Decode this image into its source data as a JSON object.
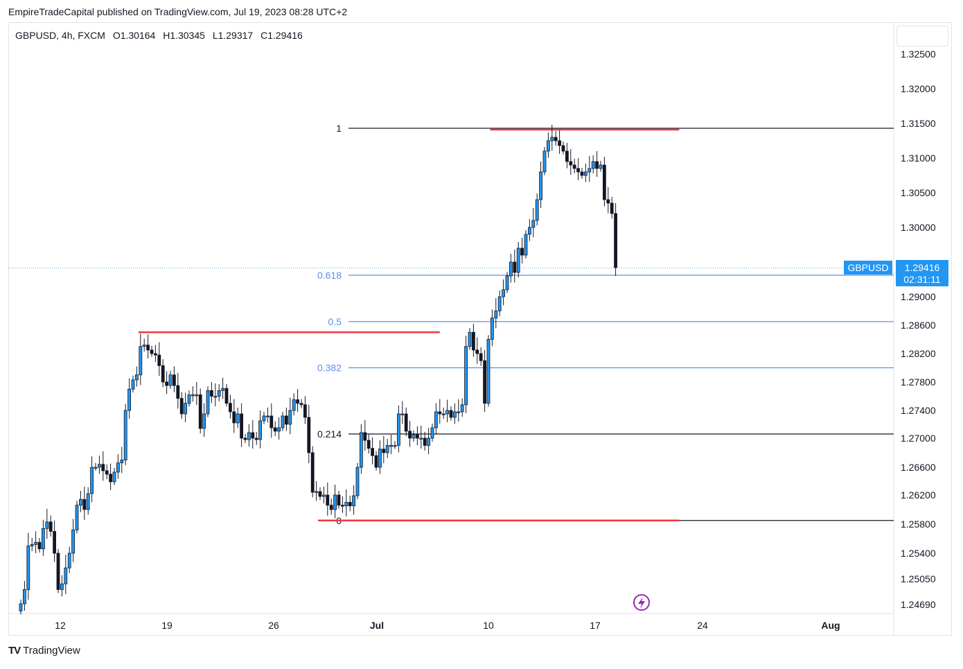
{
  "header": {
    "published_by": "EmpireTradeCapital published on TradingView.com, Jul 19, 2023 08:28 UTC+2"
  },
  "legend": {
    "symbol": "GBPUSD, 4h, FXCM",
    "open": "O1.30164",
    "high": "H1.30345",
    "low": "L1.29317",
    "close": "C1.29416"
  },
  "price_badge": {
    "symbol": "GBPUSD",
    "price": "1.29416",
    "countdown": "02:31:11",
    "color": "#2196f3"
  },
  "footer": {
    "brand": "TradingView"
  },
  "chart_data": {
    "type": "candlestick",
    "symbol": "GBPUSD",
    "timeframe": "4h",
    "y_axis": {
      "ticks": [
        "1.32500",
        "1.32000",
        "1.31500",
        "1.31000",
        "1.30500",
        "1.30000",
        "1.29000",
        "1.28600",
        "1.28200",
        "1.27800",
        "1.27400",
        "1.27000",
        "1.26600",
        "1.26200",
        "1.25800",
        "1.25400",
        "1.25050",
        "1.24690"
      ]
    },
    "x_axis": {
      "ticks": [
        "12",
        "19",
        "26",
        "Jul",
        "10",
        "17",
        "24",
        "Aug"
      ]
    },
    "last_price": 1.29416,
    "fibonacci": {
      "levels": [
        {
          "label": "1",
          "price": 1.3143,
          "color": "#131722"
        },
        {
          "label": "0.618",
          "price": 1.2931,
          "color": "#5b8def"
        },
        {
          "label": "0.5",
          "price": 1.2865,
          "color": "#5b8def"
        },
        {
          "label": "0.382",
          "price": 1.28,
          "color": "#5b8def"
        },
        {
          "label": "0.214",
          "price": 1.2706,
          "color": "#131722"
        },
        {
          "label": "0",
          "price": 1.2585,
          "color": "#131722"
        }
      ]
    },
    "horizontal_rays": [
      {
        "name": "resistance-top",
        "price": 1.3141,
        "from_bar": 126,
        "to_bar": 176,
        "color": "#f23645"
      },
      {
        "name": "swing-high-june",
        "price": 1.285,
        "from_bar": 32,
        "to_bar": 112,
        "color": "#f23645"
      },
      {
        "name": "support-bottom",
        "price": 1.2585,
        "from_bar": 80,
        "to_bar": 176,
        "color": "#f23645"
      }
    ],
    "closes": [
      1.247,
      1.249,
      1.255,
      1.2552,
      1.2555,
      1.2546,
      1.2574,
      1.2583,
      1.257,
      1.254,
      1.249,
      1.2498,
      1.252,
      1.254,
      1.2572,
      1.2606,
      1.2614,
      1.26,
      1.2622,
      1.266,
      1.266,
      1.2664,
      1.2655,
      1.265,
      1.2639,
      1.2653,
      1.2666,
      1.267,
      1.274,
      1.277,
      1.2783,
      1.279,
      1.283,
      1.2832,
      1.2825,
      1.282,
      1.2818,
      1.2803,
      1.278,
      1.2775,
      1.279,
      1.2775,
      1.2757,
      1.2735,
      1.275,
      1.2762,
      1.2762,
      1.2762,
      1.2714,
      1.2735,
      1.2768,
      1.276,
      1.276,
      1.2768,
      1.2771,
      1.275,
      1.2738,
      1.2722,
      1.2735,
      1.27,
      1.2698,
      1.2708,
      1.27,
      1.2698,
      1.2725,
      1.2732,
      1.2732,
      1.2715,
      1.271,
      1.2715,
      1.2732,
      1.272,
      1.274,
      1.2755,
      1.275,
      1.2748,
      1.273,
      1.268,
      1.2624,
      1.2625,
      1.2618,
      1.262,
      1.2606,
      1.26,
      1.262,
      1.2606,
      1.2605,
      1.261,
      1.2605,
      1.2619,
      1.266,
      1.2708,
      1.2697,
      1.2686,
      1.2676,
      1.266,
      1.2685,
      1.268,
      1.269,
      1.269,
      1.269,
      1.2735,
      1.2735,
      1.271,
      1.27,
      1.2705,
      1.27,
      1.27,
      1.269,
      1.27,
      1.2715,
      1.2738,
      1.2735,
      1.2735,
      1.274,
      1.273,
      1.2738,
      1.2738,
      1.2748,
      1.283,
      1.285,
      1.2825,
      1.282,
      1.281,
      1.275,
      1.284,
      1.287,
      1.288,
      1.29,
      1.291,
      1.293,
      1.295,
      1.2935,
      1.297,
      1.296,
      1.299,
      1.3,
      1.301,
      1.304,
      1.308,
      1.311,
      1.3125,
      1.313,
      1.3125,
      1.3118,
      1.311,
      1.3095,
      1.309,
      1.3085,
      1.308,
      1.3075,
      1.308,
      1.3085,
      1.3095,
      1.3085,
      1.309,
      1.304,
      1.3035,
      1.302,
      1.2942
    ]
  }
}
